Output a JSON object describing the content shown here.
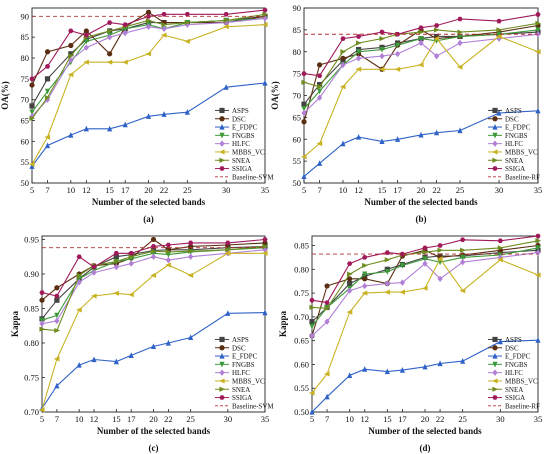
{
  "x_categories": [
    "5",
    "7",
    "10",
    "12",
    "15",
    "17",
    "20",
    "22",
    "25",
    "30",
    "35"
  ],
  "method_styles": {
    "ASPS": {
      "color": "#444444",
      "marker": "square"
    },
    "DSC": {
      "color": "#5a2e12",
      "marker": "circle"
    },
    "E_FDPC": {
      "color": "#2f62c8",
      "marker": "triangle-up"
    },
    "FNGBS": {
      "color": "#3d9a3a",
      "marker": "triangle-down"
    },
    "HLFC": {
      "color": "#b07fd6",
      "marker": "diamond"
    },
    "MBBS_VC": {
      "color": "#c9b324",
      "marker": "triangle-left"
    },
    "SNEA": {
      "color": "#6e8c1f",
      "marker": "triangle-right"
    },
    "SSIGA": {
      "color": "#a01a5a",
      "marker": "hexagon"
    },
    "Baseline": {
      "color": "#b03030",
      "marker": "none",
      "dash": "dashed"
    }
  },
  "chart_data": [
    {
      "type": "line",
      "caption": "(a)",
      "xlabel": "Number of the selected bands",
      "ylabel": "OA(%)",
      "yticks": [
        50,
        55,
        60,
        65,
        70,
        75,
        80,
        85,
        90
      ],
      "ylim": [
        50,
        92
      ],
      "legend_position": "bottom-right",
      "series": [
        {
          "name": "ASPS",
          "values": [
            68.5,
            75.0,
            81.0,
            84.5,
            86.5,
            87.0,
            88.5,
            88.5,
            88.5,
            89.0,
            90.0
          ]
        },
        {
          "name": "DSC",
          "values": [
            73.5,
            81.5,
            83.0,
            86.5,
            81.0,
            87.5,
            91.0,
            88.5,
            88.5,
            88.5,
            90.0
          ]
        },
        {
          "name": "E_FDPC",
          "values": [
            54.0,
            59.0,
            61.5,
            63.0,
            63.0,
            64.0,
            66.0,
            66.5,
            67.0,
            73.0,
            74.0
          ]
        },
        {
          "name": "FNGBS",
          "values": [
            67.0,
            72.0,
            79.0,
            84.0,
            85.5,
            87.0,
            88.0,
            87.0,
            88.5,
            89.0,
            89.5
          ]
        },
        {
          "name": "HLFC",
          "values": [
            66.0,
            70.0,
            79.5,
            82.5,
            85.0,
            86.0,
            87.5,
            87.0,
            88.0,
            88.5,
            89.5
          ]
        },
        {
          "name": "MBBS_VC",
          "values": [
            54.5,
            61.0,
            76.0,
            79.0,
            79.0,
            79.0,
            81.0,
            85.5,
            84.0,
            87.5,
            88.0
          ]
        },
        {
          "name": "SNEA",
          "values": [
            65.5,
            70.5,
            80.5,
            85.0,
            86.5,
            87.5,
            89.0,
            88.0,
            88.5,
            89.0,
            90.5
          ]
        },
        {
          "name": "SSIGA",
          "values": [
            75.0,
            78.0,
            86.5,
            85.5,
            88.5,
            88.0,
            90.0,
            90.5,
            90.5,
            90.5,
            91.5
          ]
        },
        {
          "name": "Baseline-SVM",
          "constant": 90.0
        }
      ]
    },
    {
      "type": "line",
      "caption": "(b)",
      "xlabel": "Number of the selected bands",
      "ylabel": "OA(%)",
      "yticks": [
        50,
        55,
        60,
        65,
        70,
        75,
        80,
        85,
        90
      ],
      "ylim": [
        50,
        90
      ],
      "legend_position": "bottom-right",
      "series": [
        {
          "name": "ASPS",
          "values": [
            68.0,
            72.5,
            78.0,
            80.5,
            81.0,
            82.0,
            83.0,
            83.5,
            83.5,
            84.0,
            84.5
          ]
        },
        {
          "name": "DSC",
          "values": [
            64.0,
            77.0,
            78.5,
            79.5,
            76.0,
            81.5,
            85.0,
            83.0,
            83.5,
            84.5,
            86.0
          ]
        },
        {
          "name": "E_FDPC",
          "values": [
            51.5,
            54.5,
            59.0,
            60.5,
            59.5,
            60.0,
            61.0,
            61.5,
            62.0,
            66.0,
            66.5
          ]
        },
        {
          "name": "FNGBS",
          "values": [
            67.0,
            71.0,
            77.0,
            80.0,
            80.5,
            81.5,
            83.0,
            82.5,
            83.5,
            84.0,
            85.0
          ]
        },
        {
          "name": "HLFC",
          "values": [
            66.0,
            69.5,
            77.0,
            78.5,
            79.0,
            79.5,
            82.0,
            79.0,
            82.0,
            83.0,
            84.0
          ]
        },
        {
          "name": "MBBS_VC",
          "values": [
            56.0,
            59.0,
            72.0,
            76.0,
            76.0,
            76.0,
            77.0,
            83.0,
            76.5,
            83.5,
            80.0
          ]
        },
        {
          "name": "SNEA",
          "values": [
            73.0,
            72.0,
            80.0,
            82.0,
            83.0,
            84.0,
            84.5,
            85.0,
            84.5,
            85.0,
            86.5
          ]
        },
        {
          "name": "SSIGA",
          "values": [
            75.0,
            74.5,
            83.0,
            83.5,
            84.5,
            84.0,
            85.5,
            86.0,
            87.5,
            87.0,
            88.5
          ]
        },
        {
          "name": "Baseline-RF",
          "constant": 84.0
        }
      ]
    },
    {
      "type": "line",
      "caption": "(c)",
      "xlabel": "Number of the selected bands",
      "ylabel": "Kappa",
      "yticks": [
        0.7,
        0.75,
        0.8,
        0.85,
        0.9,
        0.95
      ],
      "ytick_labels": [
        "0.70",
        "0.75",
        "0.80",
        "0.85",
        "0.90",
        "0.95"
      ],
      "ylim": [
        0.7,
        0.955
      ],
      "legend_position": "bottom-right",
      "series": [
        {
          "name": "ASPS",
          "values": [
            0.835,
            0.862,
            0.893,
            0.91,
            0.925,
            0.928,
            0.934,
            0.935,
            0.935,
            0.938,
            0.94
          ]
        },
        {
          "name": "DSC",
          "values": [
            0.862,
            0.88,
            0.9,
            0.912,
            0.915,
            0.923,
            0.95,
            0.935,
            0.94,
            0.942,
            0.945
          ]
        },
        {
          "name": "E_FDPC",
          "values": [
            0.705,
            0.738,
            0.768,
            0.776,
            0.773,
            0.782,
            0.795,
            0.8,
            0.808,
            0.843,
            0.844
          ]
        },
        {
          "name": "FNGBS",
          "values": [
            0.833,
            0.84,
            0.893,
            0.905,
            0.918,
            0.922,
            0.93,
            0.928,
            0.932,
            0.935,
            0.938
          ]
        },
        {
          "name": "HLFC",
          "values": [
            0.828,
            0.832,
            0.888,
            0.902,
            0.91,
            0.915,
            0.925,
            0.92,
            0.925,
            0.93,
            0.935
          ]
        },
        {
          "name": "MBBS_VC",
          "values": [
            0.703,
            0.777,
            0.848,
            0.868,
            0.872,
            0.87,
            0.898,
            0.913,
            0.898,
            0.93,
            0.93
          ]
        },
        {
          "name": "SNEA",
          "values": [
            0.82,
            0.818,
            0.898,
            0.912,
            0.918,
            0.925,
            0.933,
            0.932,
            0.933,
            0.935,
            0.94
          ]
        },
        {
          "name": "SSIGA",
          "values": [
            0.873,
            0.868,
            0.925,
            0.91,
            0.93,
            0.93,
            0.94,
            0.942,
            0.945,
            0.945,
            0.95
          ]
        },
        {
          "name": "Baseline-SVM",
          "constant": 0.938
        }
      ]
    },
    {
      "type": "line",
      "caption": "(d)",
      "xlabel": "Number of the selected bands",
      "ylabel": "Kappa",
      "yticks": [
        0.5,
        0.55,
        0.6,
        0.65,
        0.7,
        0.75,
        0.8,
        0.85
      ],
      "ytick_labels": [
        "0.50",
        "0.55",
        "0.60",
        "0.65",
        "0.70",
        "0.75",
        "0.80",
        "0.85"
      ],
      "ylim": [
        0.5,
        0.87
      ],
      "legend_position": "bottom-right",
      "series": [
        {
          "name": "ASPS",
          "values": [
            0.69,
            0.72,
            0.77,
            0.785,
            0.8,
            0.81,
            0.825,
            0.828,
            0.828,
            0.835,
            0.84
          ]
        },
        {
          "name": "DSC",
          "values": [
            0.66,
            0.765,
            0.78,
            0.78,
            0.77,
            0.828,
            0.84,
            0.825,
            0.83,
            0.84,
            0.85
          ]
        },
        {
          "name": "E_FDPC",
          "values": [
            0.5,
            0.532,
            0.577,
            0.59,
            0.585,
            0.588,
            0.595,
            0.602,
            0.607,
            0.648,
            0.651
          ]
        },
        {
          "name": "FNGBS",
          "values": [
            0.68,
            0.72,
            0.76,
            0.79,
            0.795,
            0.808,
            0.822,
            0.815,
            0.825,
            0.83,
            0.845
          ]
        },
        {
          "name": "HLFC",
          "values": [
            0.66,
            0.69,
            0.755,
            0.765,
            0.77,
            0.772,
            0.812,
            0.78,
            0.815,
            0.825,
            0.835
          ]
        },
        {
          "name": "MBBS_VC",
          "values": [
            0.54,
            0.58,
            0.71,
            0.75,
            0.752,
            0.752,
            0.76,
            0.822,
            0.755,
            0.82,
            0.788
          ]
        },
        {
          "name": "SNEA",
          "values": [
            0.72,
            0.718,
            0.79,
            0.808,
            0.82,
            0.83,
            0.836,
            0.84,
            0.84,
            0.845,
            0.86
          ]
        },
        {
          "name": "SSIGA",
          "values": [
            0.735,
            0.73,
            0.812,
            0.825,
            0.835,
            0.832,
            0.845,
            0.85,
            0.862,
            0.86,
            0.87
          ]
        },
        {
          "name": "Baseline-RF",
          "constant": 0.832
        }
      ]
    }
  ]
}
